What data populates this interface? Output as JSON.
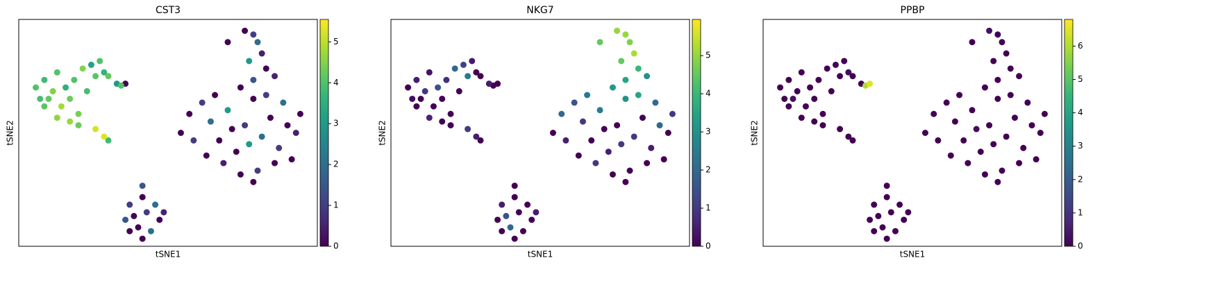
{
  "chart_data": [
    {
      "type": "scatter",
      "title": "CST3",
      "x_label": "tSNE1",
      "y_label": "tSNE2",
      "colormap": "viridis",
      "xlim": [
        -35,
        35
      ],
      "ylim": [
        -30,
        30
      ],
      "clim": [
        0,
        5.55
      ],
      "cticks": [
        0,
        1,
        2,
        3,
        4,
        5
      ],
      "x": [
        -31,
        -29,
        -28,
        -27,
        -26,
        -25,
        -24,
        -23,
        -22,
        -21,
        -20,
        -19,
        -18,
        -17,
        -16,
        -15,
        -14,
        -12,
        -10,
        -11,
        -26,
        -23,
        -29,
        -17,
        -15,
        -14,
        -21,
        -30,
        20,
        21,
        18,
        22,
        19,
        23,
        14,
        20,
        25,
        17,
        5,
        8,
        10,
        12,
        14,
        16,
        18,
        20,
        22,
        24,
        26,
        28,
        30,
        31,
        27,
        25,
        21,
        17,
        13,
        9,
        6,
        3,
        19,
        15,
        23,
        11,
        29,
        20,
        -6,
        -6,
        -9,
        -3,
        -8,
        -5,
        -2,
        -10,
        -7,
        -4,
        -6,
        -1,
        -9
      ],
      "y": [
        12,
        14,
        9,
        11,
        16,
        7,
        12,
        9,
        14,
        5,
        17,
        11,
        18,
        15,
        19,
        16,
        15,
        13,
        13,
        12.5,
        4,
        3,
        7,
        1,
        -1,
        -2,
        2,
        9,
        26,
        24,
        27,
        21,
        19,
        17,
        24,
        14,
        15,
        12,
        5,
        8,
        3,
        -2,
        6,
        -5,
        2,
        9,
        -1,
        4,
        -4,
        2,
        0,
        5,
        8,
        -8,
        -10,
        -11,
        -8,
        -6,
        -2,
        0,
        -3,
        1,
        10,
        10,
        -7,
        -13,
        -14,
        -17,
        -19,
        -19,
        -22,
        -21,
        -23,
        -23,
        -25,
        -26,
        -28,
        -21,
        -26
      ],
      "color_values": [
        4,
        3.8,
        4.2,
        4.5,
        4,
        4.8,
        3.5,
        4.3,
        4,
        4.4,
        4.5,
        3.9,
        3.2,
        4.1,
        4,
        3.6,
        4.2,
        3,
        0,
        4,
        4.6,
        4.7,
        4.1,
        5.2,
        5.3,
        3.8,
        4.3,
        3.9,
        1,
        2,
        0,
        0.5,
        3,
        0,
        0,
        1.5,
        0.5,
        0,
        0,
        1,
        2,
        0,
        3,
        0,
        1,
        0,
        2,
        0,
        1,
        0,
        0.5,
        0,
        2,
        0,
        1,
        0,
        0.5,
        0,
        1,
        0,
        3,
        0,
        1,
        0,
        0,
        0,
        1.5,
        0,
        1,
        2,
        0,
        1,
        0,
        1.5,
        0,
        2,
        0,
        0.5,
        0
      ]
    },
    {
      "type": "scatter",
      "title": "NKG7",
      "x_label": "tSNE1",
      "y_label": "tSNE2",
      "colormap": "viridis",
      "xlim": [
        -35,
        35
      ],
      "ylim": [
        -30,
        30
      ],
      "clim": [
        0,
        5.95
      ],
      "cticks": [
        0,
        1,
        2,
        3,
        4,
        5
      ],
      "x": [
        -31,
        -29,
        -28,
        -27,
        -26,
        -25,
        -24,
        -23,
        -22,
        -21,
        -20,
        -19,
        -18,
        -17,
        -16,
        -15,
        -14,
        -12,
        -10,
        -11,
        -26,
        -23,
        -29,
        -17,
        -15,
        -14,
        -21,
        -30,
        20,
        21,
        18,
        22,
        19,
        23,
        14,
        20,
        25,
        17,
        5,
        8,
        10,
        12,
        14,
        16,
        18,
        20,
        22,
        24,
        26,
        28,
        30,
        31,
        27,
        25,
        21,
        17,
        13,
        9,
        6,
        3,
        19,
        15,
        23,
        11,
        29,
        20,
        -6,
        -6,
        -9,
        -3,
        -8,
        -5,
        -2,
        -10,
        -7,
        -4,
        -6,
        -1,
        -9
      ],
      "y": [
        12,
        14,
        9,
        11,
        16,
        7,
        12,
        9,
        14,
        5,
        17,
        11,
        18,
        15,
        19,
        16,
        15,
        13,
        13,
        12.5,
        4,
        3,
        7,
        1,
        -1,
        -2,
        2,
        9,
        26,
        24,
        27,
        21,
        19,
        17,
        24,
        14,
        15,
        12,
        5,
        8,
        3,
        -2,
        6,
        -5,
        2,
        9,
        -1,
        4,
        -4,
        2,
        0,
        5,
        8,
        -8,
        -10,
        -11,
        -8,
        -6,
        -2,
        0,
        -3,
        1,
        10,
        10,
        -7,
        -13,
        -14,
        -17,
        -19,
        -19,
        -22,
        -21,
        -23,
        -23,
        -25,
        -26,
        -28,
        -21,
        -26
      ],
      "color_values": [
        0,
        0.5,
        0,
        1,
        0.3,
        0,
        1.5,
        0,
        0.8,
        0,
        2,
        0,
        1.2,
        2.5,
        0.4,
        0,
        0,
        0.5,
        0,
        0,
        0.6,
        0,
        0,
        1,
        0.5,
        0,
        0,
        0.2,
        5,
        4.8,
        5,
        5.2,
        4.5,
        4,
        4.5,
        3.5,
        3,
        3.2,
        2,
        1.5,
        1,
        0,
        2.5,
        0.5,
        0,
        3,
        1,
        0,
        0.5,
        2,
        0,
        1,
        2,
        0,
        0,
        0,
        1,
        0,
        0.5,
        0,
        1,
        0,
        3.5,
        2.5,
        0,
        0,
        0,
        0,
        0.5,
        0,
        1.5,
        0,
        0,
        0,
        2,
        0,
        0,
        0.5,
        0
      ]
    },
    {
      "type": "scatter",
      "title": "PPBP",
      "x_label": "tSNE1",
      "y_label": "tSNE2",
      "colormap": "viridis",
      "xlim": [
        -35,
        35
      ],
      "ylim": [
        -30,
        30
      ],
      "clim": [
        0,
        6.8
      ],
      "cticks": [
        0,
        1,
        2,
        3,
        4,
        5,
        6
      ],
      "x": [
        -31,
        -29,
        -28,
        -27,
        -26,
        -25,
        -24,
        -23,
        -22,
        -21,
        -20,
        -19,
        -18,
        -17,
        -16,
        -15,
        -14,
        -12,
        -10,
        -11,
        -26,
        -23,
        -29,
        -17,
        -15,
        -14,
        -21,
        -30,
        20,
        21,
        18,
        22,
        19,
        23,
        14,
        20,
        25,
        17,
        5,
        8,
        10,
        12,
        14,
        16,
        18,
        20,
        22,
        24,
        26,
        28,
        30,
        31,
        27,
        25,
        21,
        17,
        13,
        9,
        6,
        3,
        19,
        15,
        23,
        11,
        29,
        20,
        -6,
        -6,
        -9,
        -3,
        -8,
        -5,
        -2,
        -10,
        -7,
        -4,
        -6,
        -1,
        -9
      ],
      "y": [
        12,
        14,
        9,
        11,
        16,
        7,
        12,
        9,
        14,
        5,
        17,
        11,
        18,
        15,
        19,
        16,
        15,
        13,
        13,
        12.5,
        4,
        3,
        7,
        1,
        -1,
        -2,
        2,
        9,
        26,
        24,
        27,
        21,
        19,
        17,
        24,
        14,
        15,
        12,
        5,
        8,
        3,
        -2,
        6,
        -5,
        2,
        9,
        -1,
        4,
        -4,
        2,
        0,
        5,
        8,
        -8,
        -10,
        -11,
        -8,
        -6,
        -2,
        0,
        -3,
        1,
        10,
        10,
        -7,
        -13,
        -14,
        -17,
        -19,
        -19,
        -22,
        -21,
        -23,
        -23,
        -25,
        -26,
        -28,
        -21,
        -26
      ],
      "color_values": [
        0,
        0,
        0.3,
        0,
        0,
        0,
        0,
        0,
        0,
        0,
        0,
        0,
        0,
        0,
        0,
        0.2,
        0,
        0,
        6.5,
        6,
        0,
        0,
        0,
        0,
        0,
        0,
        0,
        0,
        0,
        0,
        0.3,
        0,
        0,
        0,
        0,
        0,
        0,
        0,
        0,
        0,
        0,
        0,
        0,
        0,
        0,
        0,
        0,
        0,
        0,
        0,
        0,
        0,
        0,
        0,
        0,
        0,
        0,
        0,
        0,
        0,
        0,
        0.2,
        0,
        0,
        0,
        0,
        0,
        0,
        0,
        0,
        0,
        0,
        0,
        0,
        0,
        0,
        0,
        0,
        0
      ]
    }
  ]
}
